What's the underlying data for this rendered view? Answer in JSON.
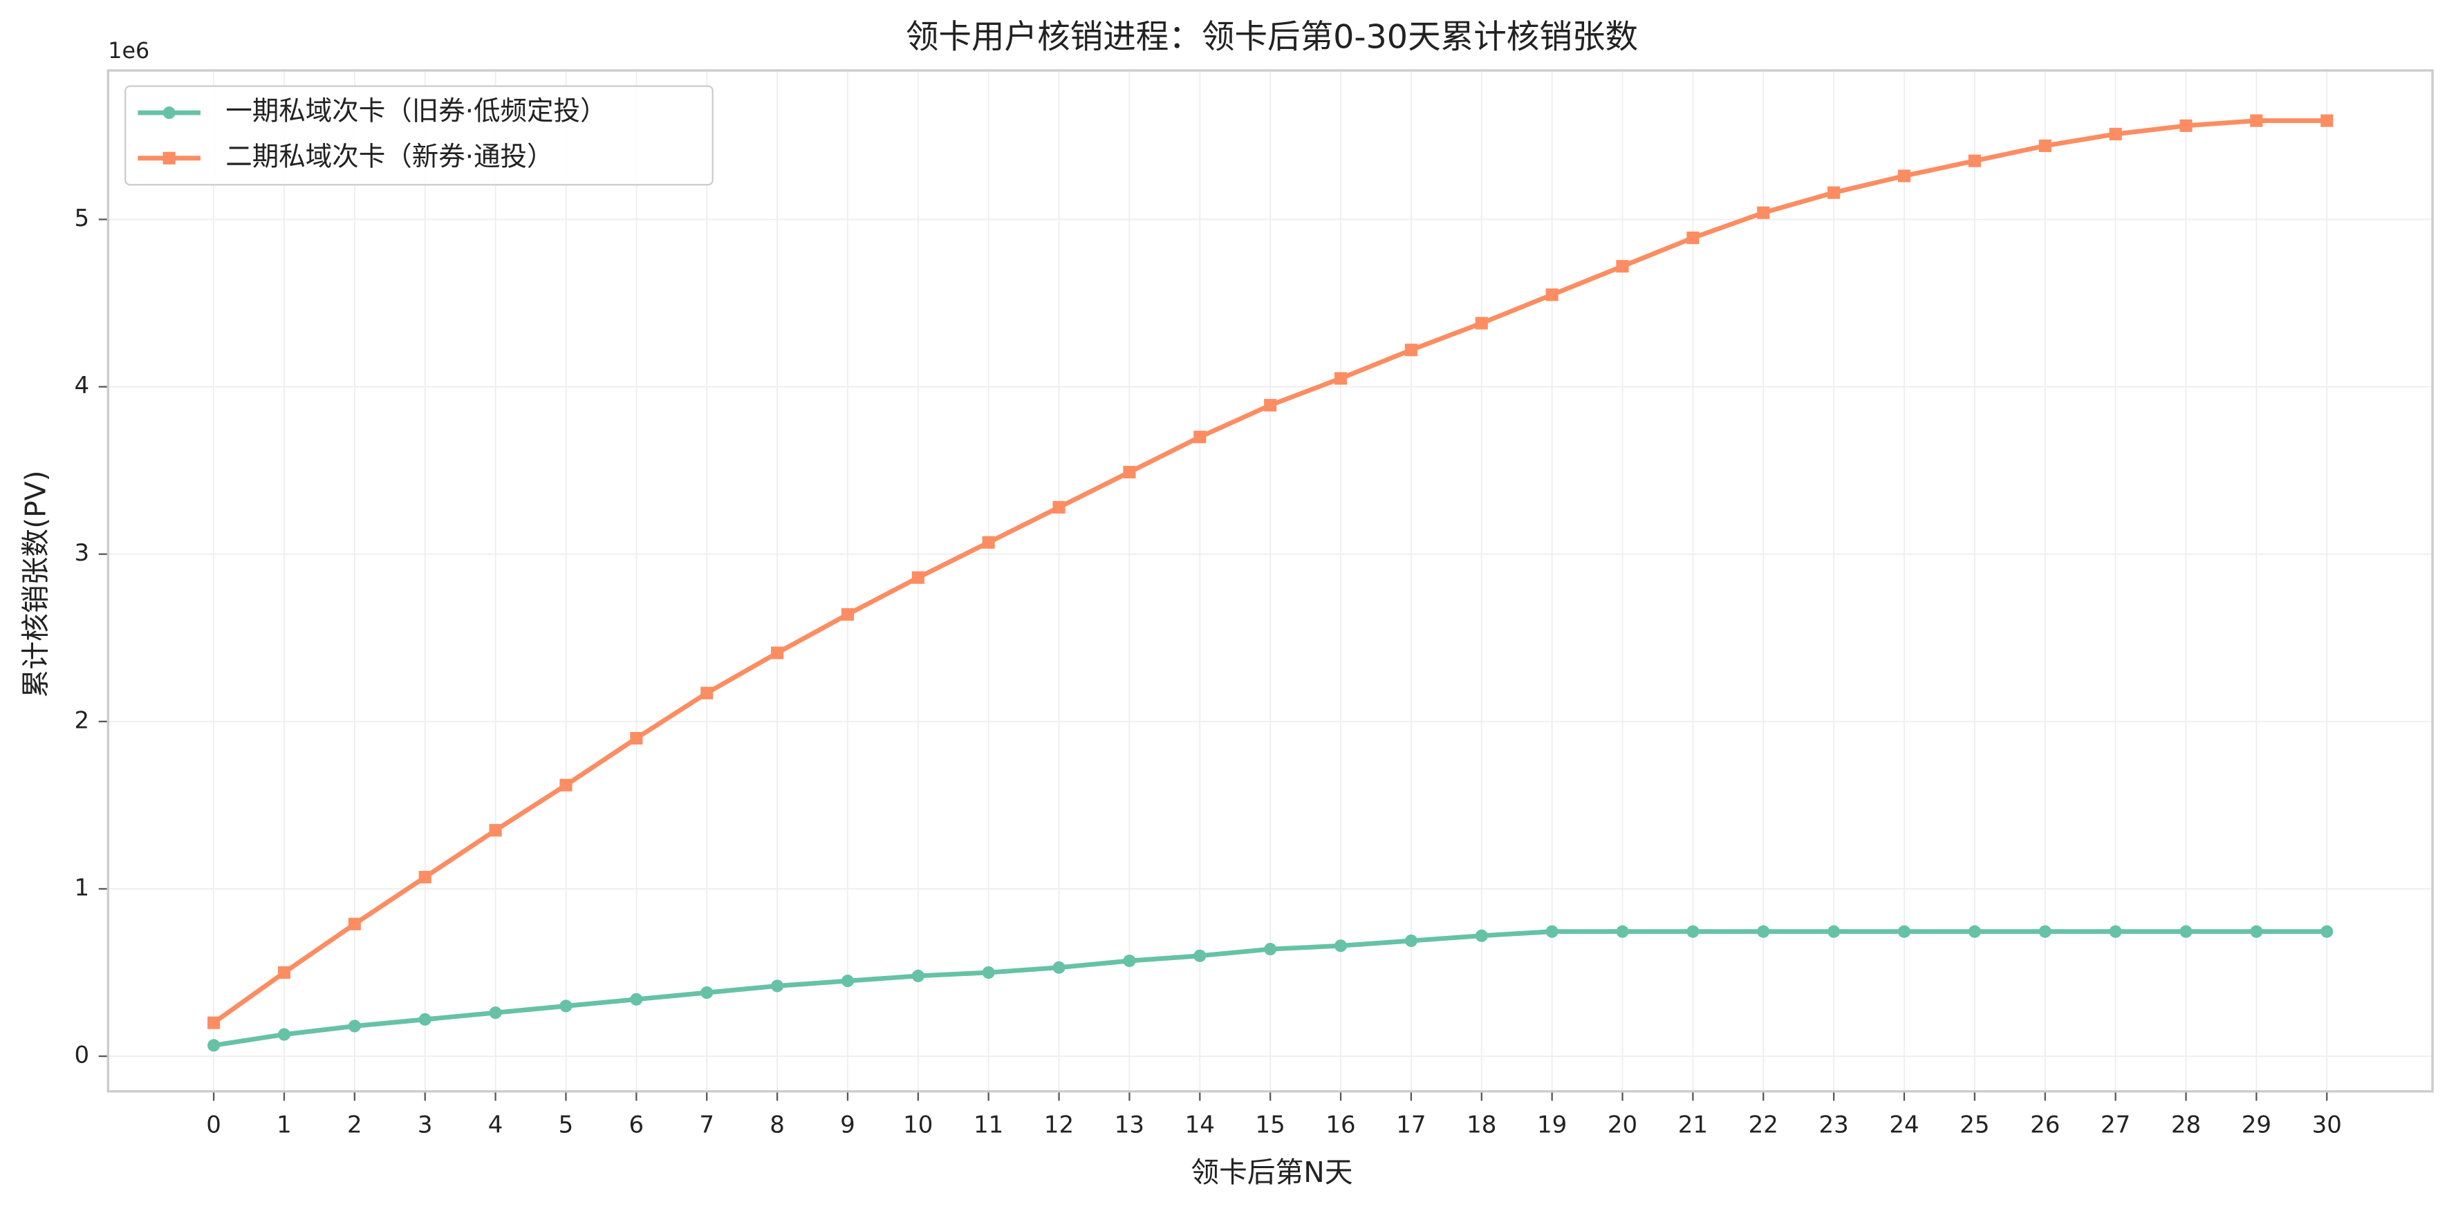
{
  "chart_data": {
    "type": "line",
    "title": "领卡用户核销进程：领卡后第0-30天累计核销张数",
    "x_label": "领卡后第N天",
    "y_label": "累计核销张数(PV)",
    "y_offset_label": "1e6",
    "x": [
      0,
      1,
      2,
      3,
      4,
      5,
      6,
      7,
      8,
      9,
      10,
      11,
      12,
      13,
      14,
      15,
      16,
      17,
      18,
      19,
      20,
      21,
      22,
      23,
      24,
      25,
      26,
      27,
      28,
      29,
      30
    ],
    "series": [
      {
        "name": "一期私域次卡（旧券·低频定投）",
        "color": "#66c2a5",
        "marker": "circle",
        "values": [
          65000,
          130000,
          180000,
          220000,
          260000,
          300000,
          340000,
          380000,
          420000,
          450000,
          480000,
          500000,
          530000,
          570000,
          600000,
          640000,
          660000,
          690000,
          720000,
          745000,
          745000,
          745000,
          745000,
          745000,
          745000,
          745000,
          745000,
          745000,
          745000,
          745000,
          745000
        ]
      },
      {
        "name": "二期私域次卡（新券·通投）",
        "color": "#fc8d62",
        "marker": "square",
        "values": [
          200000,
          500000,
          790000,
          1070000,
          1350000,
          1620000,
          1900000,
          2170000,
          2410000,
          2640000,
          2860000,
          3070000,
          3280000,
          3490000,
          3700000,
          3890000,
          4050000,
          4220000,
          4380000,
          4550000,
          4720000,
          4890000,
          5040000,
          5160000,
          5260000,
          5350000,
          5440000,
          5510000,
          5560000,
          5590000,
          5590000
        ]
      }
    ],
    "xlim": [
      -1.5,
      31.5
    ],
    "ylim": [
      -210000,
      5890000
    ],
    "xticks": [
      0,
      1,
      2,
      3,
      4,
      5,
      6,
      7,
      8,
      9,
      10,
      11,
      12,
      13,
      14,
      15,
      16,
      17,
      18,
      19,
      20,
      21,
      22,
      23,
      24,
      25,
      26,
      27,
      28,
      29,
      30
    ],
    "yticks": [
      {
        "value": 0,
        "label": "0"
      },
      {
        "value": 1000000,
        "label": "1"
      },
      {
        "value": 2000000,
        "label": "2"
      },
      {
        "value": 3000000,
        "label": "3"
      },
      {
        "value": 4000000,
        "label": "4"
      },
      {
        "value": 5000000,
        "label": "5"
      }
    ],
    "grid": true,
    "legend": "upper left"
  }
}
